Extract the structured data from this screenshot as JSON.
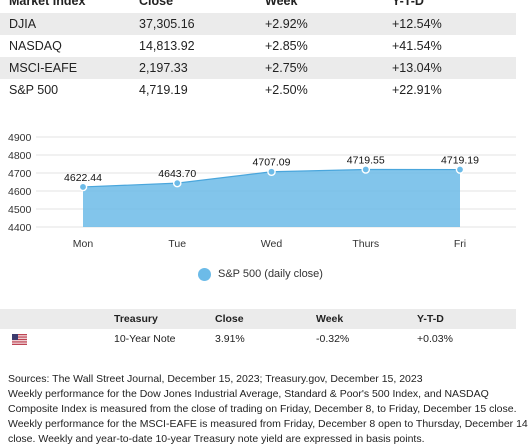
{
  "market": {
    "headers": [
      "Market Index",
      "Close",
      "Week",
      "Y-T-D"
    ],
    "rows": [
      {
        "index": "DJIA",
        "close": "37,305.16",
        "week": "+2.92%",
        "ytd": "+12.54%"
      },
      {
        "index": "NASDAQ",
        "close": "14,813.92",
        "week": "+2.85%",
        "ytd": "+41.54%"
      },
      {
        "index": "MSCI-EAFE",
        "close": "2,197.33",
        "week": "+2.75%",
        "ytd": "+13.04%"
      },
      {
        "index": "S&P 500",
        "close": "4,719.19",
        "week": "+2.50%",
        "ytd": "+22.91%"
      }
    ]
  },
  "chart_data": {
    "type": "area",
    "categories": [
      "Mon",
      "Tue",
      "Wed",
      "Thurs",
      "Fri"
    ],
    "series": [
      {
        "name": "S&P 500 (daily close)",
        "values": [
          4622.44,
          4643.7,
          4707.09,
          4719.55,
          4719.19
        ]
      }
    ],
    "data_labels": [
      "4622.44",
      "4643.70",
      "4707.09",
      "4719.55",
      "4719.19"
    ],
    "y_ticks": [
      4900,
      4800,
      4700,
      4600,
      4500,
      4400
    ],
    "ylim": [
      4400,
      4900
    ],
    "grid": true,
    "legend": "bottom",
    "color": "#6cbbe8"
  },
  "legend_label": "S&P 500 (daily close)",
  "treasury": {
    "headers": [
      "Treasury",
      "Close",
      "Week",
      "Y-T-D"
    ],
    "row": {
      "name": "10-Year Note",
      "close": "3.91%",
      "week": "-0.32%",
      "ytd": "+0.03%"
    }
  },
  "notes": [
    "Sources: The Wall Street Journal, December 15, 2023; Treasury.gov, December 15, 2023",
    "Weekly performance for the Dow Jones Industrial Average, Standard & Poor's 500 Index, and NASDAQ",
    "Composite Index is measured from the close of trading on Friday, December 8, to Friday, December 15 close.",
    "Weekly performance for the MSCI-EAFE is measured from Friday, December 8 open to Thursday, December 14",
    "close. Weekly and year-to-date 10-year Treasury note yield are expressed in basis points."
  ]
}
